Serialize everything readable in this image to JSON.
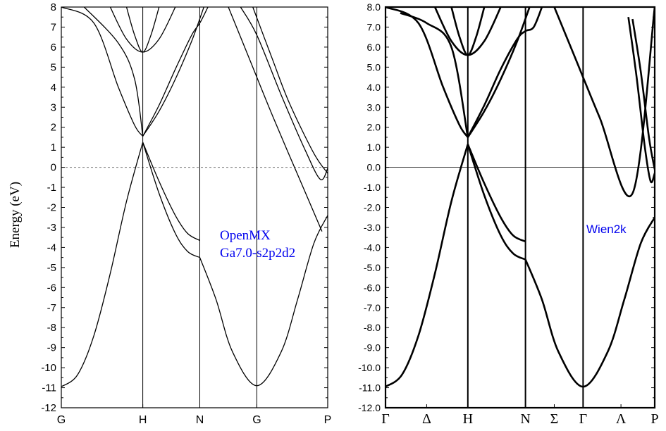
{
  "y_axis_label": "Energy (eV)",
  "charts": {
    "left": {
      "annotation": [
        "OpenMX",
        "Ga7.0-s2p2d2"
      ],
      "annotation_color": "#0000ee",
      "ytick_labels": [
        "8",
        "7",
        "6",
        "5",
        "4",
        "3",
        "2",
        "1",
        "0",
        "-1",
        "-2",
        "-3",
        "-4",
        "-5",
        "-6",
        "-7",
        "-8",
        "-9",
        "-10",
        "-11",
        "-12"
      ],
      "xtick_labels": [
        "G",
        "H",
        "N",
        "G",
        "P"
      ]
    },
    "right": {
      "annotation": [
        "Wien2k"
      ],
      "annotation_color": "#0000ee",
      "ytick_labels": [
        "8.0",
        "7.0",
        "6.0",
        "5.0",
        "4.0",
        "3.0",
        "2.0",
        "1.0",
        "0.0",
        "-1.0",
        "-2.0",
        "-3.0",
        "-4.0",
        "-5.0",
        "-6.0",
        "-7.0",
        "-8.0",
        "-9.0",
        "-10.0",
        "-11.0",
        "-12.0"
      ],
      "xtick_labels": [
        "Γ",
        "Δ",
        "H",
        "N",
        "Σ",
        "Γ",
        "Λ",
        "P"
      ]
    }
  },
  "chart_data": [
    {
      "type": "line",
      "ylabel": "Energy (eV)",
      "ylim": [
        -12,
        8
      ],
      "fermi_level": 0,
      "fermi_line_style": "dashed",
      "high_symmetry_points": [
        {
          "label": "G",
          "k": 0
        },
        {
          "label": "H",
          "k": 1
        },
        {
          "label": "N",
          "k": 1.7
        },
        {
          "label": "G",
          "k": 2.4
        },
        {
          "label": "P",
          "k": 3.27
        }
      ],
      "series": [
        {
          "x": [
            0,
            0.2,
            0.4,
            0.6,
            0.8,
            1.0
          ],
          "values": [
            -10.95,
            -10.35,
            -8.4,
            -5.3,
            -1.7,
            1.25
          ]
        },
        {
          "x": [
            1.0,
            1.2,
            1.4,
            1.55,
            1.7
          ],
          "values": [
            1.25,
            -0.7,
            -2.4,
            -3.3,
            -3.65
          ]
        },
        {
          "x": [
            1.0,
            1.2,
            1.4,
            1.55,
            1.7
          ],
          "values": [
            1.25,
            -1.3,
            -3.3,
            -4.2,
            -4.5
          ]
        },
        {
          "x": [
            0,
            0.4,
            0.7,
            0.9,
            1.0
          ],
          "values": [
            8.0,
            7.2,
            4.0,
            2.1,
            1.55
          ]
        },
        {
          "x": [
            0.28,
            0.7,
            0.9,
            1.0
          ],
          "values": [
            8.0,
            6.2,
            4.4,
            1.55
          ]
        },
        {
          "x": [
            1.0,
            1.2,
            1.4,
            1.6,
            1.7,
            1.8
          ],
          "values": [
            1.55,
            3.1,
            4.9,
            6.6,
            7.2,
            8.0
          ]
        },
        {
          "x": [
            1.0,
            1.2,
            1.4,
            1.6,
            1.75
          ],
          "values": [
            1.55,
            2.8,
            4.4,
            6.3,
            8.0
          ]
        },
        {
          "x": [
            0.6,
            0.8,
            1.0,
            1.2,
            1.4
          ],
          "values": [
            8.0,
            6.4,
            5.75,
            6.4,
            8.0
          ]
        },
        {
          "x": [
            0.8,
            0.9,
            1.0,
            1.1,
            1.2
          ],
          "values": [
            8.0,
            6.6,
            5.75,
            6.6,
            8.0
          ]
        },
        {
          "x": [
            1.7,
            1.9,
            2.1,
            2.4,
            2.7,
            2.9,
            3.1,
            3.27
          ],
          "values": [
            -4.5,
            -6.6,
            -9.2,
            -10.9,
            -9.2,
            -6.6,
            -3.8,
            -2.4
          ]
        },
        {
          "x": [
            2.05,
            2.3,
            2.6,
            3.0,
            3.2
          ],
          "values": [
            8.0,
            5.5,
            2.5,
            -1.3,
            -3.2
          ]
        },
        {
          "x": [
            2.2,
            2.4,
            2.7,
            3.0,
            3.18,
            3.27
          ],
          "values": [
            8.0,
            6.6,
            3.6,
            0.8,
            -0.6,
            -0.05
          ]
        },
        {
          "x": [
            2.35,
            2.6,
            2.8,
            3.1,
            3.27
          ],
          "values": [
            8.0,
            5.3,
            3.2,
            0.7,
            -0.3
          ]
        }
      ]
    },
    {
      "type": "line",
      "ylim": [
        -12.0,
        8.0
      ],
      "fermi_level": 0.0,
      "fermi_line_style": "solid",
      "high_symmetry_points": [
        {
          "label": "Γ",
          "k": 0
        },
        {
          "label": "Δ",
          "k": 0.5
        },
        {
          "label": "H",
          "k": 1
        },
        {
          "label": "N",
          "k": 1.7
        },
        {
          "label": "Σ",
          "k": 2.05
        },
        {
          "label": "Γ",
          "k": 2.4
        },
        {
          "label": "Λ",
          "k": 2.86
        },
        {
          "label": "P",
          "k": 3.27
        }
      ],
      "series": [
        {
          "x": [
            0,
            0.2,
            0.4,
            0.6,
            0.8,
            1.0
          ],
          "values": [
            -10.95,
            -10.35,
            -8.4,
            -5.3,
            -1.7,
            1.15
          ]
        },
        {
          "x": [
            1.0,
            1.2,
            1.4,
            1.55,
            1.7
          ],
          "values": [
            1.15,
            -0.8,
            -2.5,
            -3.4,
            -3.7
          ]
        },
        {
          "x": [
            1.0,
            1.2,
            1.4,
            1.55,
            1.7
          ],
          "values": [
            1.15,
            -1.4,
            -3.4,
            -4.3,
            -4.6
          ]
        },
        {
          "x": [
            0,
            0.4,
            0.7,
            0.9,
            1.0
          ],
          "values": [
            8.0,
            7.2,
            4.0,
            2.1,
            1.5
          ]
        },
        {
          "x": [
            0.18,
            0.5,
            0.8,
            1.0
          ],
          "values": [
            7.7,
            7.2,
            6.0,
            1.5
          ]
        },
        {
          "x": [
            1.0,
            1.2,
            1.4,
            1.6,
            1.7,
            1.8,
            1.9
          ],
          "values": [
            1.5,
            3.1,
            4.9,
            6.4,
            6.8,
            7.0,
            8.0
          ]
        },
        {
          "x": [
            1.0,
            1.2,
            1.4,
            1.6,
            1.75
          ],
          "values": [
            1.5,
            2.8,
            4.4,
            6.3,
            8.0
          ]
        },
        {
          "x": [
            0.6,
            0.8,
            1.0,
            1.2,
            1.4
          ],
          "values": [
            8.0,
            6.3,
            5.6,
            6.3,
            8.0
          ]
        },
        {
          "x": [
            0.8,
            0.9,
            1.0,
            1.1,
            1.2
          ],
          "values": [
            8.0,
            6.5,
            5.6,
            6.5,
            8.0
          ]
        },
        {
          "x": [
            1.7,
            1.9,
            2.1,
            2.4,
            2.7,
            2.9,
            3.1,
            3.27
          ],
          "values": [
            -4.6,
            -6.6,
            -9.2,
            -10.95,
            -9.2,
            -6.6,
            -3.8,
            -2.5
          ]
        },
        {
          "x": [
            2.05,
            2.3,
            2.6,
            3.0,
            3.27
          ],
          "values": [
            8.0,
            5.5,
            2.5,
            -1.3,
            8.0
          ]
        },
        {
          "x": [
            2.95,
            3.05,
            3.15,
            3.22,
            3.27
          ],
          "values": [
            7.5,
            4.5,
            1.0,
            -0.7,
            -0.3
          ]
        },
        {
          "x": [
            3.0,
            3.1,
            3.2,
            3.27
          ],
          "values": [
            7.4,
            4.8,
            1.5,
            -0.1
          ]
        }
      ]
    }
  ]
}
